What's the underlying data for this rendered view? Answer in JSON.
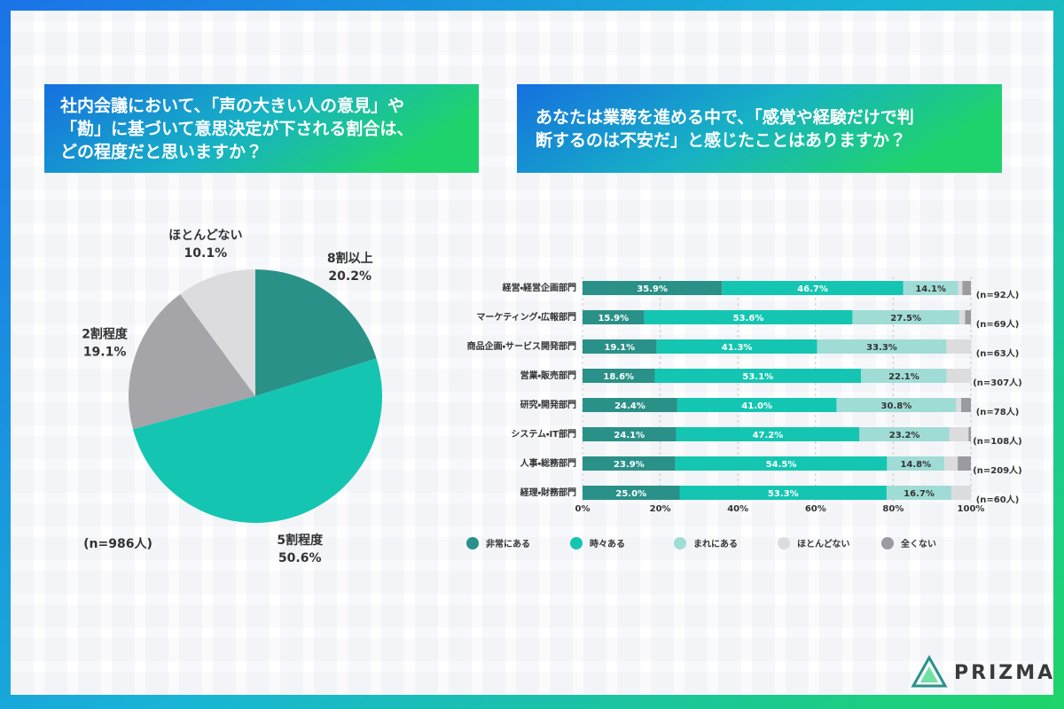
{
  "chart_data": [
    {
      "type": "pie",
      "title": [
        "社内会議において、「声の大きい人の意見」や",
        "「勘」に基づいて意思決定が下される割合は、",
        "どの程度だと思いますか？"
      ],
      "categories": [
        "8割以上",
        "5割程度",
        "2割程度",
        "ほとんどない"
      ],
      "values": [
        20.2,
        50.6,
        19.1,
        10.1
      ],
      "value_labels": [
        "20.2%",
        "50.6%",
        "19.1%",
        "10.1%"
      ],
      "colors": [
        "#2a9188",
        "#14c6b2",
        "#a4a4a9",
        "#dcdcdf"
      ],
      "note": "(n=986人)"
    },
    {
      "type": "stacked_barh",
      "title": [
        "あなたは業務を進める中で、「感覚や経験だけで判",
        "断するのは不安だ」と感じたことはありますか？"
      ],
      "categories": [
        "経営・経営企画部門",
        "マーケティング・広報部門",
        "商品企画・サービス開発部門",
        "営業・販売部門",
        "研究・開発部門",
        "システム・IT部門",
        "人事・総務部門",
        "経理・財務部門"
      ],
      "sample_sizes": [
        "(n=92人)",
        "(n=69人)",
        "(n=63人)",
        "(n=307人)",
        "(n=78人)",
        "(n=108人)",
        "(n=209人)",
        "(n=60人)"
      ],
      "series": [
        {
          "name": "非常にある",
          "color": "#2a9188",
          "values": [
            35.9,
            15.9,
            19.1,
            18.6,
            24.4,
            24.1,
            23.9,
            25.0
          ],
          "value_labels": [
            "35.9%",
            "15.9%",
            "19.1%",
            "18.6%",
            "24.4%",
            "24.1%",
            "23.9%",
            "25.0%"
          ]
        },
        {
          "name": "時々ある",
          "color": "#14c6b2",
          "values": [
            46.7,
            53.6,
            41.3,
            53.1,
            41.0,
            47.2,
            54.5,
            53.3
          ],
          "value_labels": [
            "46.7%",
            "53.6%",
            "41.3%",
            "53.1%",
            "41.0%",
            "47.2%",
            "54.5%",
            "53.3%"
          ]
        },
        {
          "name": "まれにある",
          "color": "#a0dcd6",
          "values": [
            14.1,
            27.5,
            33.3,
            22.1,
            30.8,
            23.2,
            14.8,
            16.7
          ],
          "value_labels": [
            "14.1%",
            "27.5%",
            "33.3%",
            "22.1%",
            "30.8%",
            "23.2%",
            "14.8%",
            "16.7%"
          ]
        },
        {
          "name": "ほとんどない",
          "color": "#dcdcdf",
          "values": [
            1.1,
            1.5,
            6.3,
            6.2,
            1.3,
            4.9,
            3.4,
            5.0
          ]
        },
        {
          "name": "全くない",
          "color": "#9a9aa0",
          "values": [
            2.2,
            1.5,
            0,
            0,
            2.5,
            0.6,
            3.4,
            0
          ]
        }
      ],
      "xlim": [
        0,
        100
      ],
      "xticks": [
        {
          "value": 0,
          "label": "0%"
        },
        {
          "value": 20,
          "label": "20%"
        },
        {
          "value": 40,
          "label": "40%"
        },
        {
          "value": 60,
          "label": "60%"
        },
        {
          "value": 80,
          "label": "80%"
        },
        {
          "value": 100,
          "label": "100%"
        }
      ],
      "grid": true
    }
  ],
  "brand": "PRIZMA"
}
